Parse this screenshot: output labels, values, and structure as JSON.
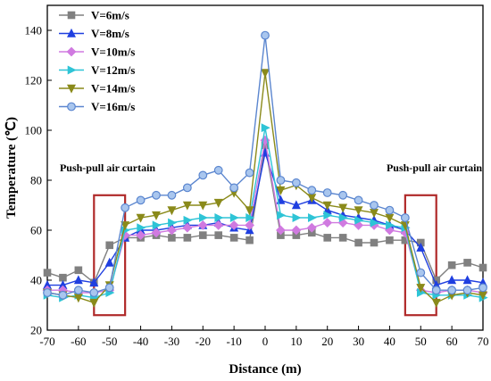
{
  "chart_data": {
    "type": "line",
    "xlabel": "Distance (m)",
    "ylabel": "Temperature (℃)",
    "xlim": [
      -70,
      70
    ],
    "ylim": [
      20,
      150
    ],
    "xticks": [
      -70,
      -60,
      -50,
      -40,
      -30,
      -20,
      -10,
      0,
      10,
      20,
      30,
      40,
      50,
      60,
      70
    ],
    "yticks": [
      20,
      40,
      60,
      80,
      100,
      120,
      140
    ],
    "grid": false,
    "legend_position": "top-left",
    "x": [
      -70,
      -65,
      -60,
      -55,
      -50,
      -45,
      -40,
      -35,
      -30,
      -25,
      -20,
      -15,
      -10,
      -5,
      0,
      5,
      10,
      15,
      20,
      25,
      30,
      35,
      40,
      45,
      50,
      55,
      60,
      65,
      70
    ],
    "series": [
      {
        "name": "V=6m/s",
        "marker": "square",
        "color": "#808080",
        "values": [
          43,
          41,
          44,
          39,
          54,
          57,
          57,
          58,
          57,
          57,
          58,
          58,
          57,
          56,
          94,
          58,
          58,
          59,
          57,
          57,
          55,
          55,
          56,
          56,
          55,
          40,
          46,
          47,
          45
        ]
      },
      {
        "name": "V=8m/s",
        "marker": "triangle-up",
        "color": "#1f3fe0",
        "values": [
          38,
          38,
          40,
          39,
          47,
          57,
          60,
          60,
          61,
          62,
          62,
          63,
          61,
          60,
          91,
          72,
          70,
          72,
          68,
          66,
          65,
          64,
          62,
          60,
          53,
          38,
          40,
          40,
          39
        ]
      },
      {
        "name": "V=10m/s",
        "marker": "diamond",
        "color": "#d07ae0",
        "values": [
          36,
          36,
          35,
          35,
          36,
          58,
          58,
          59,
          60,
          61,
          62,
          62,
          62,
          62,
          96,
          60,
          60,
          61,
          63,
          63,
          62,
          62,
          60,
          59,
          36,
          35,
          36,
          36,
          35
        ]
      },
      {
        "name": "V=12m/s",
        "marker": "triangle-right",
        "color": "#2ec4d6",
        "values": [
          34,
          33,
          34,
          33,
          35,
          60,
          61,
          62,
          63,
          64,
          65,
          65,
          65,
          65,
          101,
          66,
          65,
          65,
          66,
          65,
          64,
          63,
          62,
          61,
          35,
          34,
          34,
          34,
          33
        ]
      },
      {
        "name": "V=14m/s",
        "marker": "triangle-down",
        "color": "#8a8a1a",
        "values": [
          35,
          34,
          33,
          31,
          38,
          62,
          65,
          66,
          68,
          70,
          70,
          71,
          75,
          68,
          123,
          76,
          78,
          73,
          70,
          69,
          68,
          67,
          65,
          62,
          37,
          31,
          34,
          35,
          34
        ]
      },
      {
        "name": "V=16m/s",
        "marker": "circle",
        "color": "#5b86cf",
        "values": [
          35,
          34,
          36,
          35,
          37,
          69,
          72,
          74,
          74,
          77,
          82,
          84,
          77,
          83,
          138,
          80,
          79,
          76,
          75,
          74,
          72,
          70,
          68,
          65,
          43,
          36,
          36,
          36,
          37
        ]
      }
    ],
    "annotations": [
      {
        "text": "Push-pull air curtain",
        "x": -66,
        "y": 85
      },
      {
        "text": "Push-pull air curtain",
        "x": 39,
        "y": 85
      }
    ],
    "highlight_regions": [
      {
        "x_range": [
          -55,
          -45
        ],
        "y_range": [
          26,
          74
        ],
        "color": "#b02a2a"
      },
      {
        "x_range": [
          45,
          55
        ],
        "y_range": [
          26,
          74
        ],
        "color": "#b02a2a"
      }
    ]
  }
}
